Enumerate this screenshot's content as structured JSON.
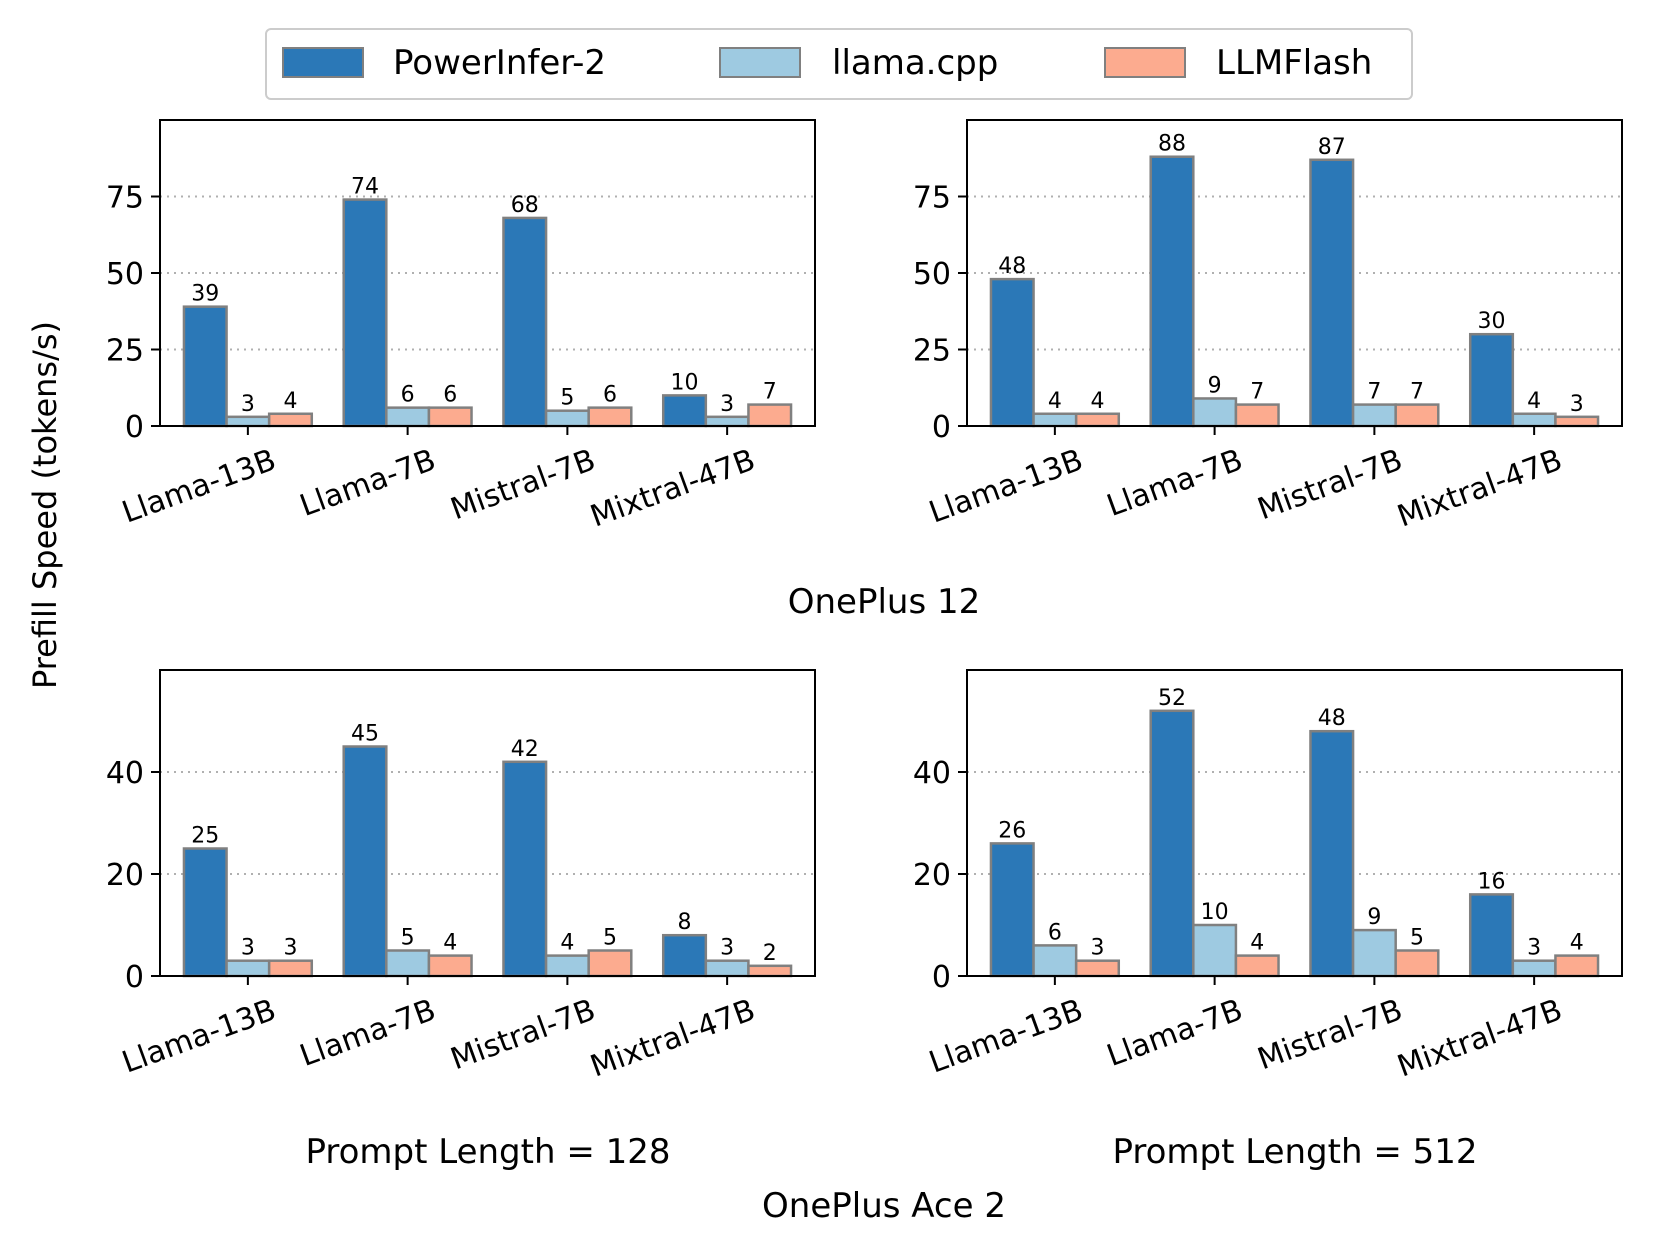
{
  "figure": {
    "ylabel": "Prefill Speed (tokens/s)",
    "device_captions": [
      "OnePlus 12",
      "OnePlus Ace 2"
    ],
    "prompt_captions": [
      "Prompt Length = 128",
      "Prompt Length = 512"
    ]
  },
  "legend": {
    "placement": "top-center",
    "items": [
      {
        "name": "PowerInfer-2",
        "color": "#2b78b7"
      },
      {
        "name": "llama.cpp",
        "color": "#9ecae1"
      },
      {
        "name": "LLMFlash",
        "color": "#fcab8f"
      }
    ]
  },
  "chart_data": [
    {
      "type": "bar",
      "device": "OnePlus 12",
      "prompt_length": "128",
      "categories": [
        "Llama-13B",
        "Llama-7B",
        "Mistral-7B",
        "Mixtral-47B"
      ],
      "series": [
        {
          "name": "PowerInfer-2",
          "values": [
            39,
            74,
            68,
            10
          ]
        },
        {
          "name": "llama.cpp",
          "values": [
            3,
            6,
            5,
            3
          ]
        },
        {
          "name": "LLMFlash",
          "values": [
            4,
            6,
            6,
            7
          ]
        }
      ],
      "ylim": [
        0,
        100
      ],
      "yticks": [
        0,
        25,
        50,
        75
      ],
      "grid": "y-dotted"
    },
    {
      "type": "bar",
      "device": "OnePlus 12",
      "prompt_length": "512",
      "categories": [
        "Llama-13B",
        "Llama-7B",
        "Mistral-7B",
        "Mixtral-47B"
      ],
      "series": [
        {
          "name": "PowerInfer-2",
          "values": [
            48,
            88,
            87,
            30
          ]
        },
        {
          "name": "llama.cpp",
          "values": [
            4,
            9,
            7,
            4
          ]
        },
        {
          "name": "LLMFlash",
          "values": [
            4,
            7,
            7,
            3
          ]
        }
      ],
      "ylim": [
        0,
        100
      ],
      "yticks": [
        0,
        25,
        50,
        75
      ],
      "grid": "y-dotted"
    },
    {
      "type": "bar",
      "device": "OnePlus Ace 2",
      "prompt_length": "128",
      "categories": [
        "Llama-13B",
        "Llama-7B",
        "Mistral-7B",
        "Mixtral-47B"
      ],
      "series": [
        {
          "name": "PowerInfer-2",
          "values": [
            25,
            45,
            42,
            8
          ]
        },
        {
          "name": "llama.cpp",
          "values": [
            3,
            5,
            4,
            3
          ]
        },
        {
          "name": "LLMFlash",
          "values": [
            3,
            4,
            5,
            2
          ]
        }
      ],
      "ylim": [
        0,
        60
      ],
      "yticks": [
        0,
        20,
        40
      ],
      "grid": "y-dotted"
    },
    {
      "type": "bar",
      "device": "OnePlus Ace 2",
      "prompt_length": "512",
      "categories": [
        "Llama-13B",
        "Llama-7B",
        "Mistral-7B",
        "Mixtral-47B"
      ],
      "series": [
        {
          "name": "PowerInfer-2",
          "values": [
            26,
            52,
            48,
            16
          ]
        },
        {
          "name": "llama.cpp",
          "values": [
            6,
            10,
            9,
            3
          ]
        },
        {
          "name": "LLMFlash",
          "values": [
            3,
            4,
            5,
            4
          ]
        }
      ],
      "ylim": [
        0,
        60
      ],
      "yticks": [
        0,
        20,
        40
      ],
      "grid": "y-dotted"
    }
  ]
}
